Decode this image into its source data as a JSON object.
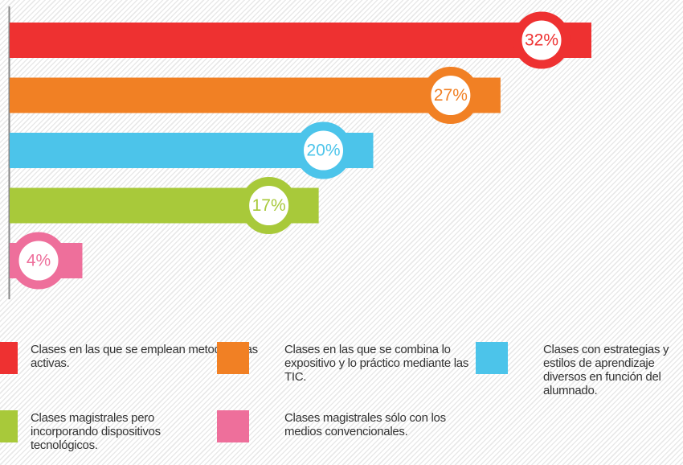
{
  "chart_data": {
    "type": "hbar",
    "categories": [
      "Clases en las que se emplean metodologías activas.",
      "Clases en las que se combina lo expositivo y lo práctico mediante las TIC.",
      "Clases con estrategias y estilos de aprendizaje diversos en función del alumnado.",
      "Clases magistrales pero incorporando dispositivos tecnológicos.",
      "Clases magistrales sólo con los medios convencionales."
    ],
    "values": [
      32,
      27,
      20,
      17,
      4
    ],
    "value_labels": [
      "32%",
      "27%",
      "20%",
      "17%",
      "4%"
    ],
    "colors": [
      "#ee3131",
      "#f18024",
      "#4cc4ea",
      "#a8c93a",
      "#ee6f9b"
    ]
  }
}
